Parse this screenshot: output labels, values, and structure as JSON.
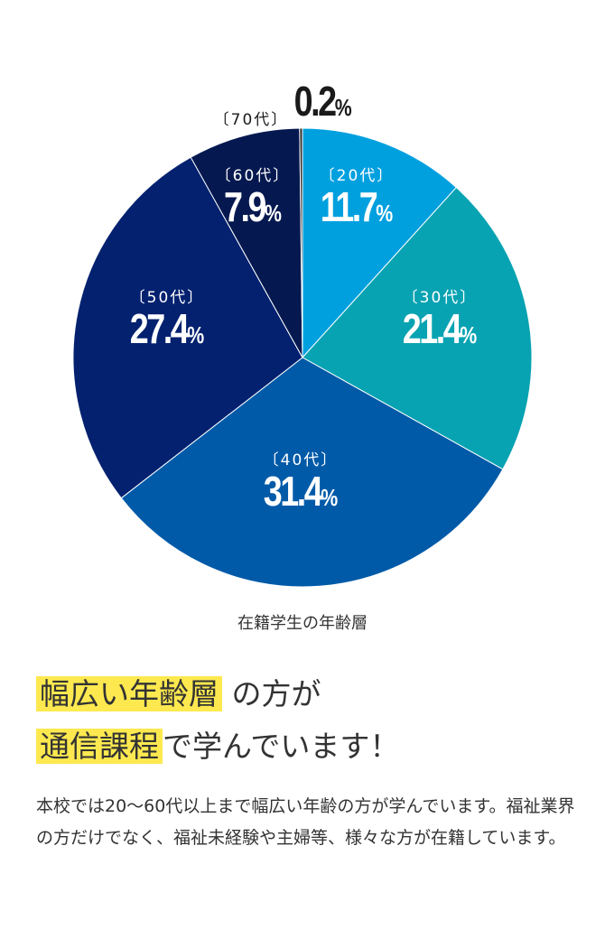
{
  "chart_data": {
    "type": "pie",
    "title": "在籍学生の年齢層",
    "start": "top",
    "direction": "clockwise",
    "slices": [
      {
        "label": "〔20代〕",
        "value": 11.7,
        "display": "11.7",
        "color": "#00a0df"
      },
      {
        "label": "〔30代〕",
        "value": 21.4,
        "display": "21.4",
        "color": "#08a3b2"
      },
      {
        "label": "〔40代〕",
        "value": 31.4,
        "display": "31.4",
        "color": "#005aa8"
      },
      {
        "label": "〔50代〕",
        "value": 27.4,
        "display": "27.4",
        "color": "#03216f"
      },
      {
        "label": "〔60代〕",
        "value": 7.9,
        "display": "7.9",
        "color": "#051950"
      },
      {
        "label": "〔70代〕",
        "value": 0.2,
        "display": "0.2",
        "color": "#333333"
      }
    ],
    "percent_sign": "%"
  },
  "headline": {
    "line1_highlight": "幅広い年齢層",
    "line1_rest": "の方が",
    "line2_highlight": "通信課程",
    "line2_rest": "で学んでいます！"
  },
  "body_text": "本校では20〜60代以上まで幅広い年齢の方が学んでいます。福祉業界の方だけでなく、福祉未経験や主婦等、様々な方が在籍しています。"
}
